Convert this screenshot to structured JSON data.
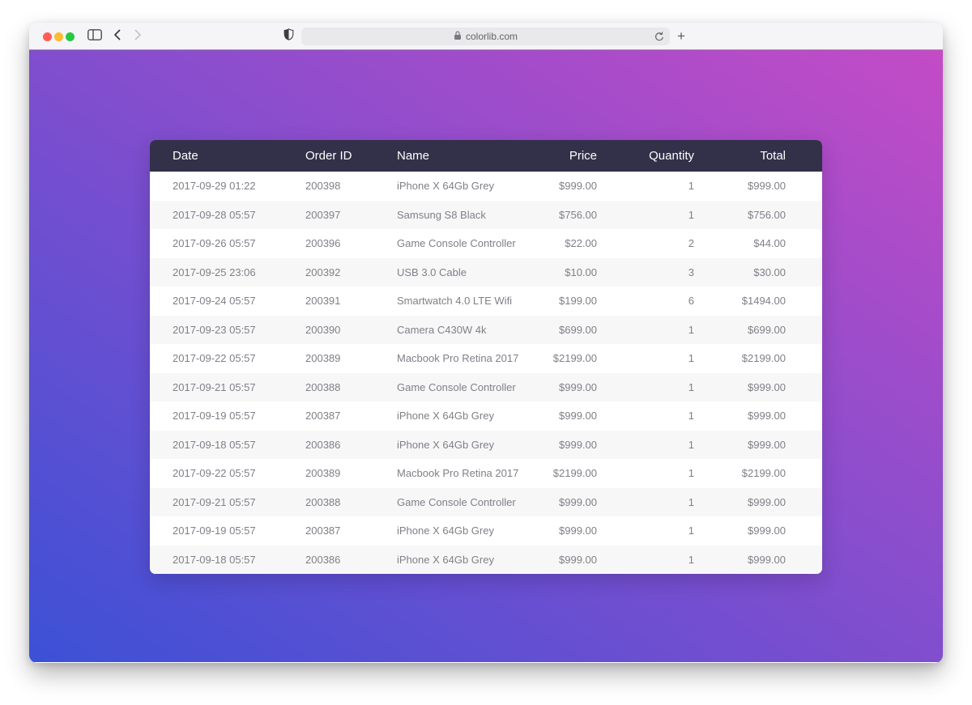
{
  "browser": {
    "window_controls": [
      {
        "name": "close",
        "color": "#ff5f57"
      },
      {
        "name": "minimize",
        "color": "#febc2e"
      },
      {
        "name": "zoom",
        "color": "#28c840"
      }
    ],
    "toolbar_icons": [
      "sidebar-icon",
      "back-icon",
      "forward-icon",
      "shield-icon",
      "lock-icon",
      "reload-icon",
      "plus-icon"
    ],
    "address_bar": {
      "url": "colorlib.com"
    },
    "new_tab_label": "+"
  },
  "theme": {
    "gradient_start": "#3c51d6",
    "gradient_end": "#c44bc6",
    "table_header_bg": "#333049",
    "stripe_bg": "#f8f7f8",
    "row_text": "#7f7f87"
  },
  "table": {
    "columns": [
      {
        "key": "date",
        "label": "Date",
        "align": "left"
      },
      {
        "key": "order_id",
        "label": "Order ID",
        "align": "left"
      },
      {
        "key": "name",
        "label": "Name",
        "align": "left"
      },
      {
        "key": "price",
        "label": "Price",
        "align": "right"
      },
      {
        "key": "quantity",
        "label": "Quantity",
        "align": "right"
      },
      {
        "key": "total",
        "label": "Total",
        "align": "right"
      }
    ],
    "rows": [
      {
        "date": "2017-09-29 01:22",
        "order_id": "200398",
        "name": "iPhone X 64Gb Grey",
        "price": "$999.00",
        "quantity": "1",
        "total": "$999.00"
      },
      {
        "date": "2017-09-28 05:57",
        "order_id": "200397",
        "name": "Samsung S8 Black",
        "price": "$756.00",
        "quantity": "1",
        "total": "$756.00"
      },
      {
        "date": "2017-09-26 05:57",
        "order_id": "200396",
        "name": "Game Console Controller",
        "price": "$22.00",
        "quantity": "2",
        "total": "$44.00"
      },
      {
        "date": "2017-09-25 23:06",
        "order_id": "200392",
        "name": "USB 3.0 Cable",
        "price": "$10.00",
        "quantity": "3",
        "total": "$30.00"
      },
      {
        "date": "2017-09-24 05:57",
        "order_id": "200391",
        "name": "Smartwatch 4.0 LTE Wifi",
        "price": "$199.00",
        "quantity": "6",
        "total": "$1494.00"
      },
      {
        "date": "2017-09-23 05:57",
        "order_id": "200390",
        "name": "Camera C430W 4k",
        "price": "$699.00",
        "quantity": "1",
        "total": "$699.00"
      },
      {
        "date": "2017-09-22 05:57",
        "order_id": "200389",
        "name": "Macbook Pro Retina 2017",
        "price": "$2199.00",
        "quantity": "1",
        "total": "$2199.00"
      },
      {
        "date": "2017-09-21 05:57",
        "order_id": "200388",
        "name": "Game Console Controller",
        "price": "$999.00",
        "quantity": "1",
        "total": "$999.00"
      },
      {
        "date": "2017-09-19 05:57",
        "order_id": "200387",
        "name": "iPhone X 64Gb Grey",
        "price": "$999.00",
        "quantity": "1",
        "total": "$999.00"
      },
      {
        "date": "2017-09-18 05:57",
        "order_id": "200386",
        "name": "iPhone X 64Gb Grey",
        "price": "$999.00",
        "quantity": "1",
        "total": "$999.00"
      },
      {
        "date": "2017-09-22 05:57",
        "order_id": "200389",
        "name": "Macbook Pro Retina 2017",
        "price": "$2199.00",
        "quantity": "1",
        "total": "$2199.00"
      },
      {
        "date": "2017-09-21 05:57",
        "order_id": "200388",
        "name": "Game Console Controller",
        "price": "$999.00",
        "quantity": "1",
        "total": "$999.00"
      },
      {
        "date": "2017-09-19 05:57",
        "order_id": "200387",
        "name": "iPhone X 64Gb Grey",
        "price": "$999.00",
        "quantity": "1",
        "total": "$999.00"
      },
      {
        "date": "2017-09-18 05:57",
        "order_id": "200386",
        "name": "iPhone X 64Gb Grey",
        "price": "$999.00",
        "quantity": "1",
        "total": "$999.00"
      }
    ]
  }
}
